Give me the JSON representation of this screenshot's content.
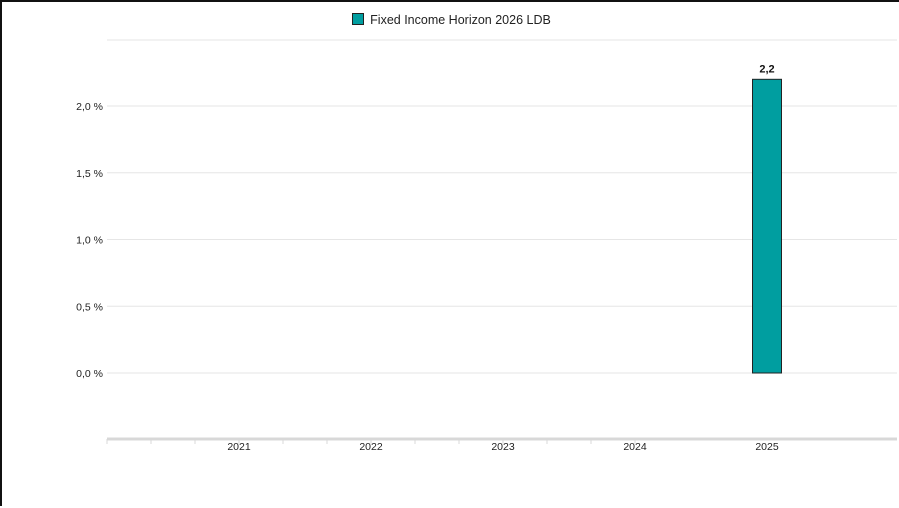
{
  "chart_data": {
    "type": "bar",
    "categories": [
      "2021",
      "2022",
      "2023",
      "2024",
      "2025"
    ],
    "series": [
      {
        "name": "Fixed Income Horizon 2026 LDB",
        "values": [
          null,
          null,
          null,
          null,
          2.2
        ],
        "data_labels": [
          "",
          "",
          "",
          "",
          "2,2"
        ]
      }
    ],
    "yticks": [
      0.0,
      0.5,
      1.0,
      1.5,
      2.0
    ],
    "ytick_labels": [
      "0,0 %",
      "0,5 %",
      "1,0 %",
      "1,5 %",
      "2,0 %"
    ],
    "ylim": [
      -0.5,
      2.5
    ],
    "grid": true,
    "legend_position": "top",
    "colors": {
      "bar": "#009ea0",
      "bar_border": "#222222",
      "grid": "#e6e6e6",
      "axis": "#d8d8d8"
    }
  }
}
